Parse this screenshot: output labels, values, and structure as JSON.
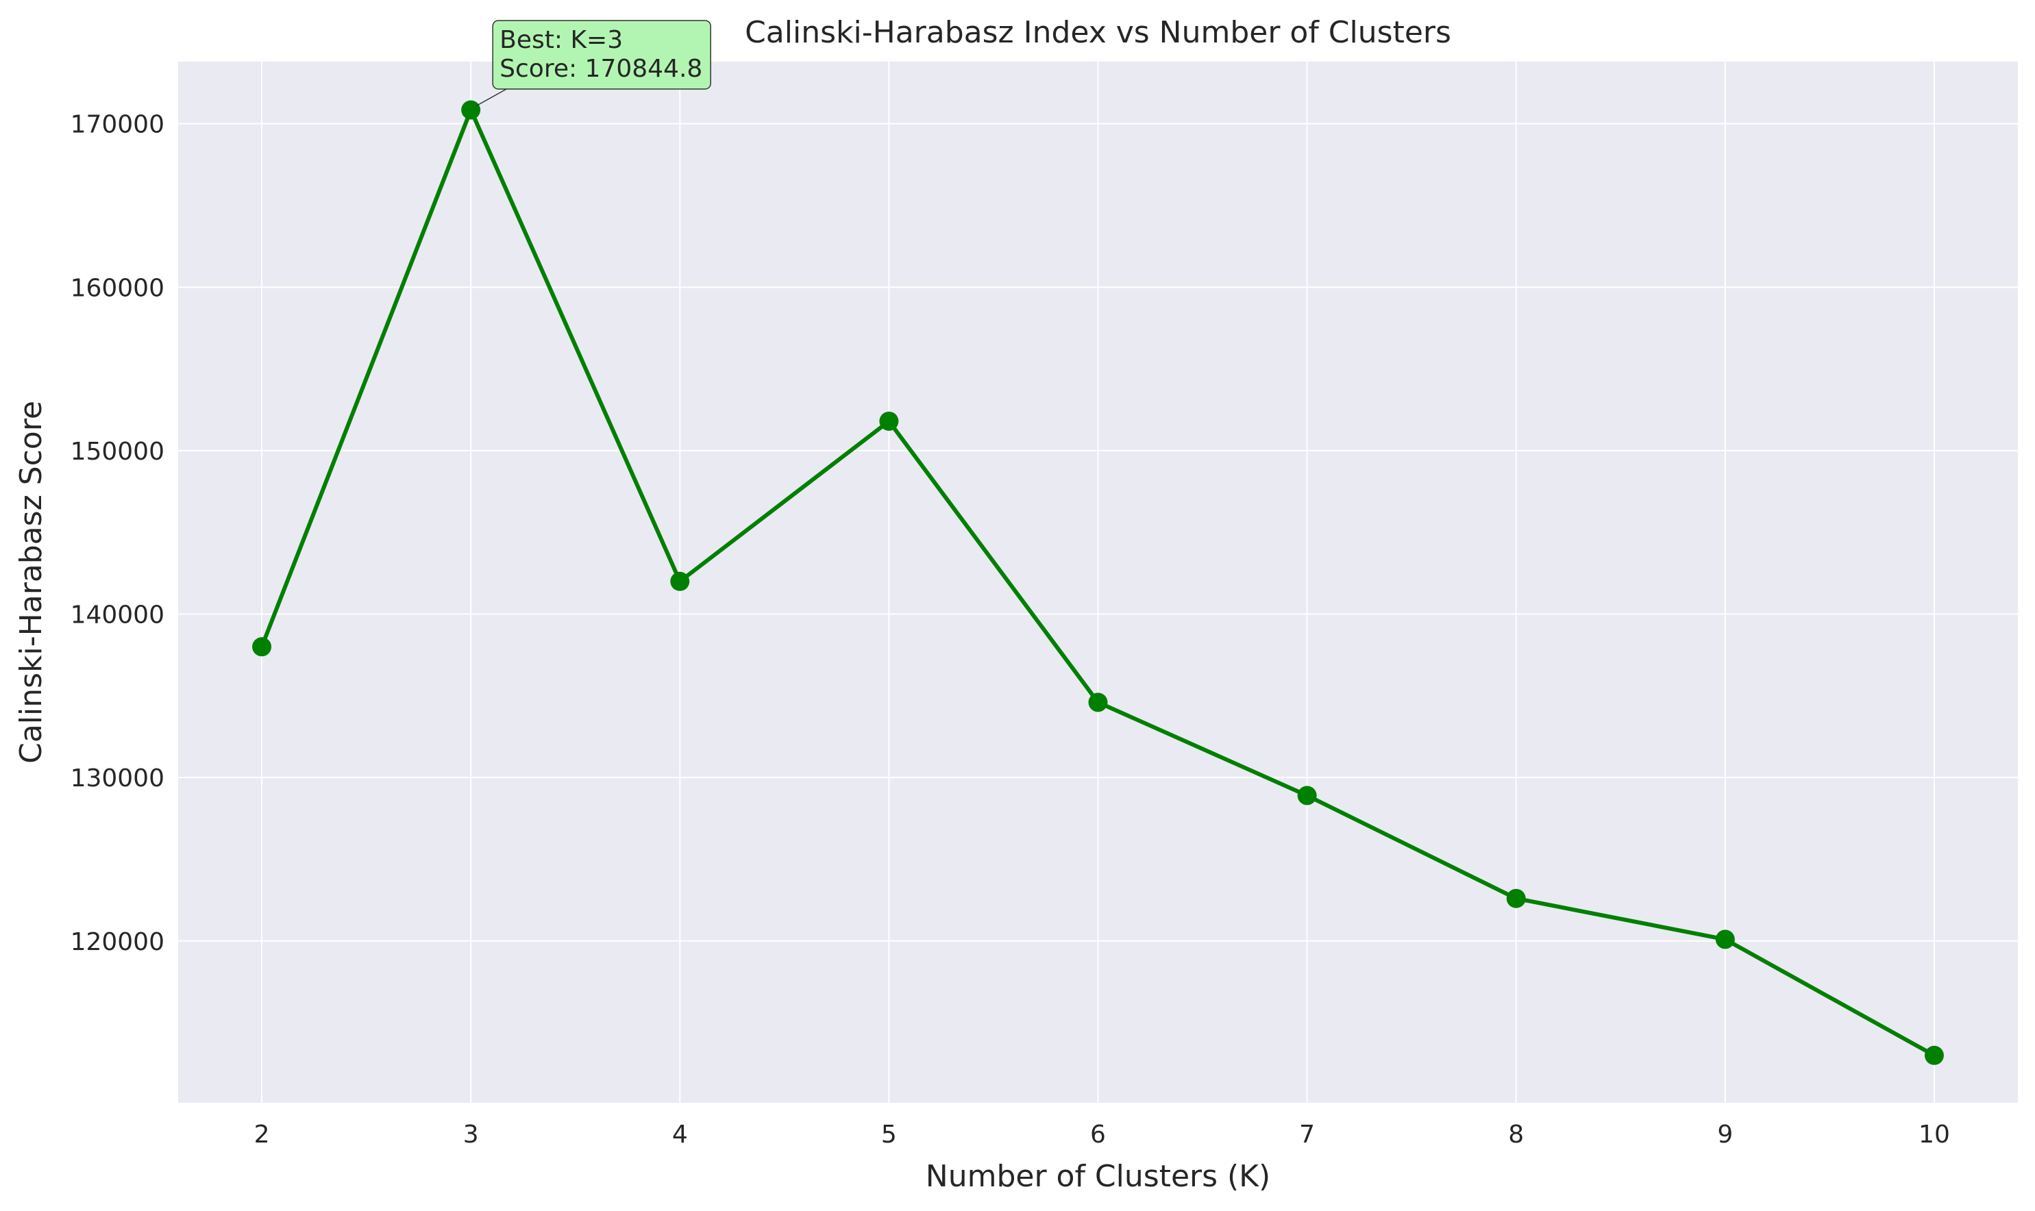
{
  "chart_data": {
    "type": "line",
    "title": "Calinski-Harabasz Index vs Number of Clusters",
    "xlabel": "Number of Clusters (K)",
    "ylabel": "Calinski-Harabasz Score",
    "x": [
      2,
      3,
      4,
      5,
      6,
      7,
      8,
      9,
      10
    ],
    "series": [
      {
        "values": [
          138000,
          170844.8,
          142000,
          151800,
          134600,
          128900,
          122600,
          120100,
          113000
        ],
        "color": "#008000"
      }
    ],
    "xlim": [
      1.6,
      10.4
    ],
    "ylim": [
      110100,
      173800
    ],
    "xticks": [
      2,
      3,
      4,
      5,
      6,
      7,
      8,
      9,
      10
    ],
    "yticks": [
      120000,
      130000,
      140000,
      150000,
      160000,
      170000
    ],
    "grid": true,
    "background_color": "#eaeaf2",
    "annotation": {
      "lines": [
        "Best: K=3",
        "Score: 170844.8"
      ],
      "x": 3,
      "y": 170844.8,
      "box_color": "#b2f5b2"
    }
  }
}
